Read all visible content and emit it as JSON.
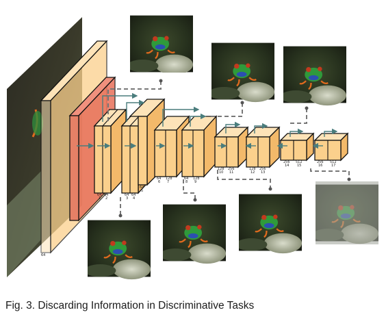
{
  "caption": "Fig. 3. Discarding Information in Discriminative Tasks",
  "input_label": "64",
  "layers": [
    {
      "id": 1,
      "channels": "64",
      "index": "1"
    },
    {
      "id": 2,
      "channels": "64",
      "index": "2"
    },
    {
      "id": 3,
      "channels": "64",
      "index": "3"
    },
    {
      "id": 4,
      "channels": "64",
      "index": "4"
    },
    {
      "id": 5,
      "channels": "64",
      "index": "5"
    },
    {
      "id": 6,
      "channels": "64",
      "index": "6"
    },
    {
      "id": 7,
      "channels": "128",
      "index": "7"
    },
    {
      "id": 8,
      "channels": "64",
      "index": "8"
    },
    {
      "id": 9,
      "channels": "128",
      "index": "9"
    },
    {
      "id": 10,
      "channels": "128",
      "index": "10"
    },
    {
      "id": 11,
      "channels": "256",
      "index": "11"
    },
    {
      "id": 12,
      "channels": "128",
      "index": "12"
    },
    {
      "id": 13,
      "channels": "256",
      "index": "13"
    },
    {
      "id": 14,
      "channels": "256",
      "index": "14"
    },
    {
      "id": 15,
      "channels": "512",
      "index": "15"
    },
    {
      "id": 16,
      "channels": "256",
      "index": "16"
    },
    {
      "id": 17,
      "channels": "512",
      "index": "17"
    }
  ],
  "thumbnails": [
    "frog-image-1",
    "frog-image-2",
    "frog-image-3",
    "frog-image-4",
    "frog-image-5",
    "frog-image-6",
    "frog-image-7",
    "frog-image-8"
  ],
  "colors": {
    "block_fill": "#fbd08c",
    "block_stroke": "#111111",
    "red_layer": "#e8705a",
    "arrow": "#4a7d7d",
    "dash": "#777777"
  }
}
